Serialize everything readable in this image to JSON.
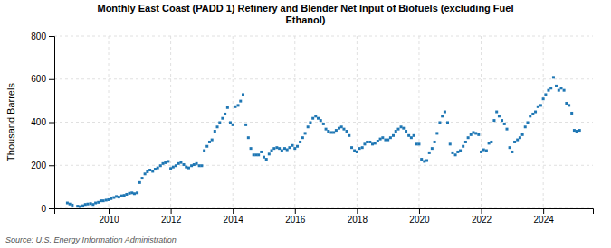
{
  "chart_data": {
    "type": "scatter",
    "title": "Monthly East Coast (PADD 1) Refinery and Blender Net Input of Biofuels (excluding Fuel\nEthanol)",
    "ylabel": "Thousand Barrels",
    "annotations": [
      "Source: U.S. Energy Information Administration"
    ],
    "marker": "square",
    "grid": true,
    "xlim": [
      2008.25,
      2025.6
    ],
    "xticks": [
      2010,
      2012,
      2014,
      2016,
      2018,
      2020,
      2022,
      2024
    ],
    "ylim": [
      0,
      800
    ],
    "yticks": [
      0,
      200,
      400,
      600,
      800
    ],
    "x": [
      2008.67,
      2008.75,
      2008.83,
      2009.0,
      2009.08,
      2009.17,
      2009.25,
      2009.33,
      2009.42,
      2009.5,
      2009.58,
      2009.67,
      2009.75,
      2009.83,
      2009.92,
      2010.0,
      2010.08,
      2010.17,
      2010.25,
      2010.33,
      2010.42,
      2010.5,
      2010.58,
      2010.67,
      2010.75,
      2010.83,
      2010.92,
      2011.0,
      2011.08,
      2011.17,
      2011.25,
      2011.33,
      2011.42,
      2011.5,
      2011.58,
      2011.67,
      2011.75,
      2011.83,
      2011.92,
      2012.0,
      2012.08,
      2012.17,
      2012.25,
      2012.33,
      2012.42,
      2012.5,
      2012.58,
      2012.67,
      2012.75,
      2012.83,
      2012.92,
      2013.0,
      2013.08,
      2013.17,
      2013.25,
      2013.33,
      2013.42,
      2013.5,
      2013.58,
      2013.67,
      2013.75,
      2013.83,
      2013.92,
      2014.0,
      2014.08,
      2014.17,
      2014.25,
      2014.33,
      2014.42,
      2014.5,
      2014.58,
      2014.67,
      2014.75,
      2014.83,
      2014.92,
      2015.0,
      2015.08,
      2015.17,
      2015.25,
      2015.33,
      2015.42,
      2015.5,
      2015.58,
      2015.67,
      2015.75,
      2015.83,
      2015.92,
      2016.0,
      2016.08,
      2016.17,
      2016.25,
      2016.33,
      2016.42,
      2016.5,
      2016.58,
      2016.67,
      2016.75,
      2016.83,
      2016.92,
      2017.0,
      2017.08,
      2017.17,
      2017.25,
      2017.33,
      2017.42,
      2017.5,
      2017.58,
      2017.67,
      2017.75,
      2017.83,
      2017.92,
      2018.0,
      2018.08,
      2018.17,
      2018.25,
      2018.33,
      2018.42,
      2018.5,
      2018.58,
      2018.67,
      2018.75,
      2018.83,
      2018.92,
      2019.0,
      2019.08,
      2019.17,
      2019.25,
      2019.33,
      2019.42,
      2019.5,
      2019.58,
      2019.67,
      2019.75,
      2019.83,
      2019.92,
      2020.0,
      2020.08,
      2020.17,
      2020.25,
      2020.33,
      2020.42,
      2020.5,
      2020.58,
      2020.67,
      2020.75,
      2020.83,
      2020.92,
      2021.0,
      2021.08,
      2021.17,
      2021.25,
      2021.33,
      2021.42,
      2021.5,
      2021.58,
      2021.67,
      2021.75,
      2021.83,
      2021.92,
      2022.0,
      2022.08,
      2022.17,
      2022.25,
      2022.33,
      2022.42,
      2022.5,
      2022.58,
      2022.67,
      2022.75,
      2022.83,
      2022.92,
      2023.0,
      2023.08,
      2023.17,
      2023.25,
      2023.33,
      2023.42,
      2023.5,
      2023.58,
      2023.67,
      2023.75,
      2023.83,
      2023.92,
      2024.0,
      2024.08,
      2024.17,
      2024.25,
      2024.33,
      2024.42,
      2024.5,
      2024.58,
      2024.67,
      2024.75,
      2024.83,
      2024.92,
      2025.0,
      2025.08,
      2025.17
    ],
    "values": [
      25,
      20,
      15,
      10,
      8,
      12,
      18,
      20,
      22,
      18,
      25,
      28,
      35,
      35,
      38,
      40,
      45,
      50,
      55,
      52,
      58,
      60,
      65,
      70,
      72,
      68,
      72,
      120,
      140,
      160,
      170,
      178,
      172,
      182,
      188,
      198,
      208,
      212,
      218,
      185,
      192,
      198,
      208,
      213,
      203,
      192,
      188,
      198,
      203,
      208,
      198,
      198,
      268,
      288,
      308,
      318,
      358,
      378,
      398,
      418,
      438,
      468,
      398,
      388,
      472,
      478,
      498,
      528,
      388,
      328,
      278,
      248,
      248,
      248,
      262,
      238,
      228,
      252,
      268,
      278,
      282,
      278,
      268,
      278,
      272,
      282,
      292,
      278,
      288,
      308,
      328,
      348,
      378,
      398,
      418,
      428,
      418,
      408,
      392,
      368,
      358,
      352,
      352,
      362,
      372,
      378,
      368,
      358,
      338,
      282,
      268,
      262,
      278,
      282,
      298,
      308,
      308,
      298,
      302,
      312,
      322,
      328,
      318,
      318,
      328,
      338,
      358,
      368,
      378,
      372,
      358,
      338,
      328,
      338,
      298,
      298,
      228,
      218,
      222,
      258,
      278,
      308,
      348,
      398,
      428,
      448,
      398,
      298,
      258,
      248,
      262,
      268,
      288,
      308,
      328,
      342,
      352,
      348,
      342,
      262,
      272,
      268,
      302,
      308,
      408,
      448,
      428,
      408,
      392,
      368,
      282,
      262,
      308,
      318,
      328,
      342,
      378,
      398,
      428,
      438,
      448,
      472,
      478,
      508,
      528,
      548,
      558,
      608,
      568,
      548,
      558,
      548,
      488,
      478,
      442,
      362,
      358,
      362
    ]
  }
}
